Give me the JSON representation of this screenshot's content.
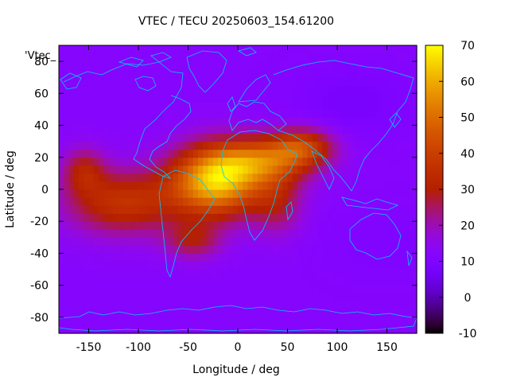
{
  "chart_data": {
    "type": "heatmap",
    "title": "VTEC / TECU 20250603_154.61200",
    "xlabel": "Longitude / deg",
    "ylabel": "Latitude / deg",
    "key_label": "'Vtec_",
    "xlim": [
      -180,
      180
    ],
    "ylim": [
      -90,
      90
    ],
    "x_ticks": [
      -150,
      -100,
      -50,
      0,
      50,
      100,
      150
    ],
    "y_ticks": [
      -80,
      -60,
      -40,
      -20,
      0,
      20,
      40,
      60,
      80
    ],
    "colorbar": {
      "min": -10,
      "max": 70,
      "ticks": [
        -10,
        0,
        10,
        20,
        30,
        40,
        50,
        60,
        70
      ],
      "palette": "gnuplot"
    },
    "background_vtec": 12,
    "features": [
      {
        "lon": -22,
        "lat": 5,
        "sigma_lon": 32,
        "sigma_lat": 15,
        "amplitude": 50
      },
      {
        "lon": 25,
        "lat": 18,
        "sigma_lon": 35,
        "sigma_lat": 10,
        "amplitude": 30
      },
      {
        "lon": 65,
        "lat": 27,
        "sigma_lon": 22,
        "sigma_lat": 8,
        "amplitude": 24
      },
      {
        "lon": -115,
        "lat": -8,
        "sigma_lon": 40,
        "sigma_lat": 14,
        "amplitude": 24
      },
      {
        "lon": -155,
        "lat": 12,
        "sigma_lon": 15,
        "sigma_lat": 10,
        "amplitude": 16
      },
      {
        "lon": -45,
        "lat": -32,
        "sigma_lon": 20,
        "sigma_lat": 8,
        "amplitude": 15
      },
      {
        "lon": 40,
        "lat": -8,
        "sigma_lon": 18,
        "sigma_lat": 14,
        "amplitude": 14
      },
      {
        "lon": 115,
        "lat": 55,
        "sigma_lon": 40,
        "sigma_lat": 15,
        "amplitude": -4
      },
      {
        "lon": 150,
        "lat": -35,
        "sigma_lon": 40,
        "sigma_lat": 15,
        "amplitude": -2
      }
    ],
    "coastline_color": "#00c8ff"
  }
}
